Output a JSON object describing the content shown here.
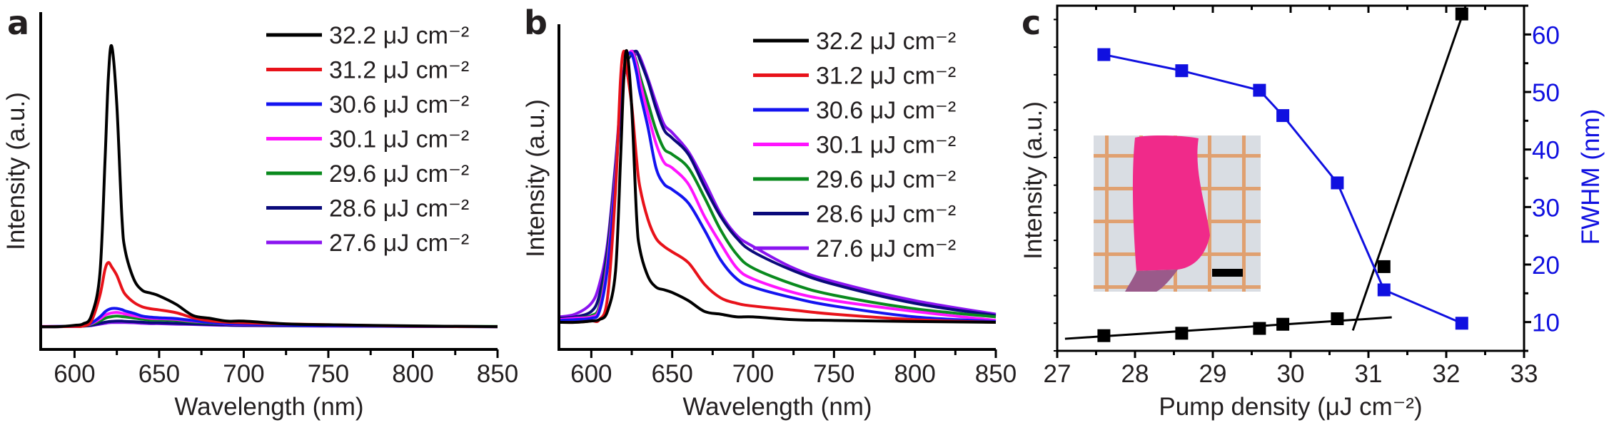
{
  "chart_data": [
    {
      "panel_label": "a",
      "type": "line",
      "xlabel": "Wavelength (nm)",
      "ylabel": "Intensity (a.u.)",
      "xlim": [
        580,
        850
      ],
      "ylim": [
        -0.081,
        1.122
      ],
      "xticks": [
        600,
        650,
        700,
        750,
        800,
        850
      ],
      "x_minor_step": 25,
      "y_ticks_shown": false,
      "grid": false,
      "legend_placement": "top-right",
      "x": [
        580,
        590,
        600,
        605,
        610,
        615,
        618,
        620,
        622,
        625,
        628,
        630,
        635,
        640,
        645,
        650,
        660,
        670,
        680,
        690,
        700,
        725,
        750,
        800,
        850
      ],
      "series": [
        {
          "name": "32.2 μJ cm⁻²",
          "color": "#000000",
          "values": [
            0,
            0,
            0.005,
            0.01,
            0.04,
            0.19,
            0.59,
            0.89,
            1.0,
            0.79,
            0.39,
            0.27,
            0.17,
            0.13,
            0.12,
            0.11,
            0.08,
            0.04,
            0.03,
            0.02,
            0.02,
            0.01,
            0.007,
            0.003,
            0
          ]
        },
        {
          "name": "31.2 μJ cm⁻²",
          "color": "#e8121a",
          "values": [
            0,
            0,
            0.001,
            0.002,
            0.021,
            0.112,
            0.204,
            0.229,
            0.213,
            0.183,
            0.137,
            0.115,
            0.087,
            0.071,
            0.064,
            0.06,
            0.05,
            0.032,
            0.021,
            0.016,
            0.014,
            0.01,
            0.007,
            0.002,
            0
          ]
        },
        {
          "name": "30.6 μJ cm⁻²",
          "color": "#1414f0",
          "values": [
            0,
            0.001,
            0.001,
            0.003,
            0.013,
            0.035,
            0.053,
            0.061,
            0.065,
            0.065,
            0.061,
            0.056,
            0.048,
            0.038,
            0.034,
            0.032,
            0.029,
            0.022,
            0.015,
            0.011,
            0.009,
            0.006,
            0.004,
            0.001,
            0
          ]
        },
        {
          "name": "30.1 μJ cm⁻²",
          "color": "#ff14ff",
          "values": [
            0.001,
            0.001,
            0.001,
            0.003,
            0.011,
            0.028,
            0.041,
            0.046,
            0.049,
            0.051,
            0.048,
            0.045,
            0.039,
            0.034,
            0.03,
            0.029,
            0.026,
            0.02,
            0.015,
            0.01,
            0.008,
            0.006,
            0.004,
            0.002,
            0
          ]
        },
        {
          "name": "29.6 μJ cm⁻²",
          "color": "#0a8a1e",
          "values": [
            0,
            0.001,
            0.001,
            0.002,
            0.009,
            0.021,
            0.03,
            0.034,
            0.036,
            0.038,
            0.036,
            0.035,
            0.031,
            0.027,
            0.024,
            0.024,
            0.022,
            0.017,
            0.013,
            0.01,
            0.008,
            0.005,
            0.004,
            0.002,
            0.001
          ]
        },
        {
          "name": "28.6 μJ cm⁻²",
          "color": "#0a0a7a",
          "values": [
            0,
            0,
            0.001,
            0.002,
            0.005,
            0.012,
            0.016,
            0.018,
            0.019,
            0.02,
            0.02,
            0.019,
            0.018,
            0.016,
            0.014,
            0.014,
            0.012,
            0.01,
            0.008,
            0.006,
            0.005,
            0.004,
            0.003,
            0.001,
            0
          ]
        },
        {
          "name": "27.6 μJ cm⁻²",
          "color": "#8a14f0",
          "values": [
            0,
            0,
            0.001,
            0.002,
            0.004,
            0.009,
            0.012,
            0.014,
            0.015,
            0.015,
            0.015,
            0.015,
            0.014,
            0.012,
            0.011,
            0.011,
            0.009,
            0.008,
            0.006,
            0.005,
            0.004,
            0.003,
            0.002,
            0.001,
            0
          ]
        }
      ]
    },
    {
      "panel_label": "b",
      "type": "line",
      "xlabel": "Wavelength (nm)",
      "ylabel": "Intensity (a.u.)",
      "xlim": [
        580,
        850
      ],
      "ylim": [
        -0.1,
        1.1
      ],
      "xticks": [
        600,
        650,
        700,
        750,
        800,
        850
      ],
      "x_minor_step": 25,
      "y_ticks_shown": false,
      "grid": false,
      "legend_placement": "top-right",
      "x": [
        580,
        590,
        600,
        605,
        610,
        615,
        618,
        620,
        622,
        625,
        628,
        630,
        635,
        640,
        645,
        650,
        660,
        670,
        680,
        690,
        700,
        725,
        750,
        800,
        850
      ],
      "series": [
        {
          "name": "32.2 μJ cm⁻²",
          "color": "#000000",
          "values": [
            0,
            0,
            0.005,
            0.01,
            0.04,
            0.19,
            0.59,
            0.89,
            1.0,
            0.79,
            0.39,
            0.27,
            0.17,
            0.13,
            0.12,
            0.11,
            0.08,
            0.04,
            0.03,
            0.02,
            0.02,
            0.01,
            0.007,
            0.003,
            0
          ]
        },
        {
          "name": "31.2 μJ cm⁻²",
          "color": "#e8121a",
          "values": [
            0,
            0,
            0.005,
            0.01,
            0.09,
            0.49,
            0.89,
            1.0,
            0.93,
            0.8,
            0.6,
            0.5,
            0.38,
            0.31,
            0.28,
            0.26,
            0.22,
            0.14,
            0.09,
            0.07,
            0.06,
            0.045,
            0.03,
            0.01,
            0
          ]
        },
        {
          "name": "30.6 μJ cm⁻²",
          "color": "#1414f0",
          "values": [
            0.007,
            0.01,
            0.015,
            0.04,
            0.2,
            0.53,
            0.8,
            0.92,
            0.98,
            0.99,
            0.92,
            0.85,
            0.72,
            0.57,
            0.51,
            0.49,
            0.44,
            0.34,
            0.23,
            0.16,
            0.13,
            0.09,
            0.06,
            0.02,
            0.003
          ]
        },
        {
          "name": "30.1 μJ cm⁻²",
          "color": "#ff14ff",
          "values": [
            0.01,
            0.015,
            0.02,
            0.05,
            0.22,
            0.55,
            0.8,
            0.9,
            0.97,
            1.0,
            0.95,
            0.89,
            0.77,
            0.66,
            0.59,
            0.57,
            0.51,
            0.39,
            0.29,
            0.2,
            0.16,
            0.11,
            0.08,
            0.04,
            0.007
          ]
        },
        {
          "name": "29.6 μJ cm⁻²",
          "color": "#0a8a1e",
          "values": [
            0.01,
            0.015,
            0.025,
            0.06,
            0.24,
            0.56,
            0.8,
            0.9,
            0.96,
            1.0,
            0.96,
            0.91,
            0.81,
            0.71,
            0.64,
            0.62,
            0.57,
            0.46,
            0.34,
            0.25,
            0.2,
            0.14,
            0.1,
            0.05,
            0.02
          ]
        },
        {
          "name": "28.6 μJ cm⁻²",
          "color": "#0a0a7a",
          "values": [
            0.015,
            0.02,
            0.04,
            0.1,
            0.27,
            0.58,
            0.8,
            0.9,
            0.96,
            0.99,
            1.0,
            0.97,
            0.89,
            0.79,
            0.71,
            0.68,
            0.62,
            0.5,
            0.39,
            0.31,
            0.26,
            0.19,
            0.14,
            0.07,
            0.025
          ]
        },
        {
          "name": "27.6 μJ cm⁻²",
          "color": "#8a14f0",
          "values": [
            0.02,
            0.03,
            0.07,
            0.14,
            0.29,
            0.59,
            0.82,
            0.92,
            0.97,
            1.0,
            0.99,
            0.98,
            0.9,
            0.81,
            0.73,
            0.7,
            0.63,
            0.52,
            0.4,
            0.32,
            0.28,
            0.2,
            0.15,
            0.08,
            0.03
          ]
        }
      ]
    },
    {
      "panel_label": "c",
      "type": "scatter",
      "xlabel": "Pump density (μJ cm⁻²)",
      "ylabel": "Intensity (a.u.)",
      "y2label": "FWHM (nm)",
      "xlim": [
        27,
        33
      ],
      "xticks": [
        27,
        28,
        29,
        30,
        31,
        32,
        33
      ],
      "ylim": [
        0,
        100
      ],
      "y_ticks_shown": false,
      "y2lim": [
        5,
        65
      ],
      "y2ticks": [
        10,
        20,
        30,
        40,
        50,
        60
      ],
      "grid": false,
      "intensity": {
        "color": "#000000",
        "x": [
          27.6,
          28.6,
          29.6,
          29.9,
          30.6,
          31.2,
          32.2
        ],
        "values": [
          4.4,
          5.1,
          6.5,
          7.7,
          9.3,
          24.4,
          97.6
        ],
        "fit_lines": [
          {
            "x": [
              27.1,
              31.3
            ],
            "y": [
              3.5,
              9.7
            ]
          },
          {
            "x": [
              30.8,
              32.25
            ],
            "y": [
              5.9,
              100
            ]
          }
        ]
      },
      "fwhm": {
        "color": "#1010e0",
        "x": [
          27.6,
          28.6,
          29.6,
          29.9,
          30.6,
          31.2,
          32.2
        ],
        "values": [
          56.5,
          53.7,
          50.3,
          45.9,
          34.2,
          15.6,
          9.8
        ]
      },
      "inset": "photo of pink sample strip on orange-gridded paper with black scale bar"
    }
  ]
}
